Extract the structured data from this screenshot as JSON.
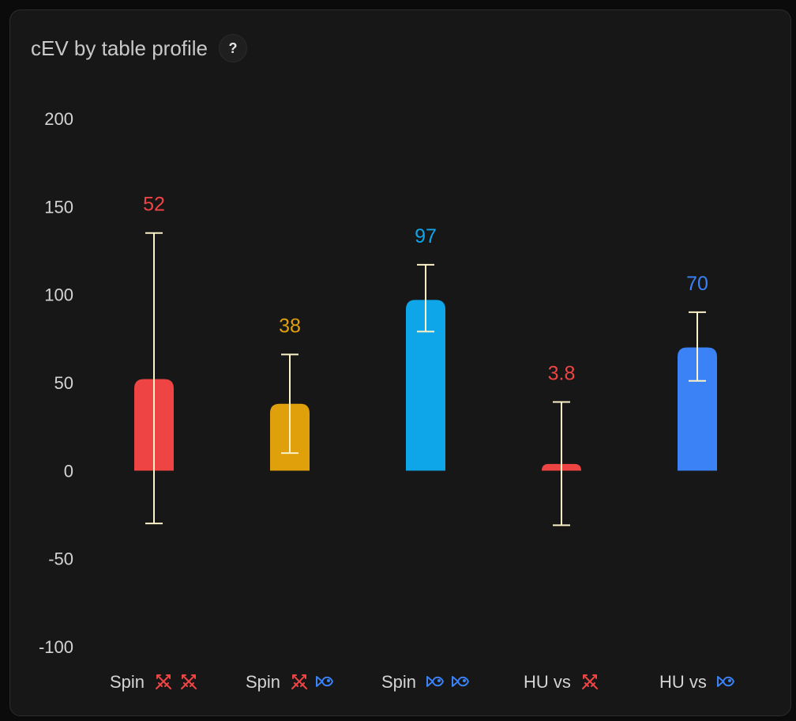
{
  "header": {
    "title": "cEV by table profile",
    "help_label": "?"
  },
  "chart_data": {
    "type": "bar",
    "title": "cEV by table profile",
    "xlabel": "",
    "ylabel": "",
    "ylim": [
      -100,
      200
    ],
    "yticks": [
      200,
      150,
      100,
      50,
      0,
      -50,
      -100
    ],
    "grid": false,
    "bars": [
      {
        "label": "Spin",
        "icons": [
          "swords-icon",
          "swords-icon"
        ],
        "value": 52,
        "value_label": "52",
        "err_low": -30,
        "err_high": 135,
        "color": "#ef4444"
      },
      {
        "label": "Spin",
        "icons": [
          "swords-icon",
          "fish-icon"
        ],
        "value": 38,
        "value_label": "38",
        "err_low": 10,
        "err_high": 66,
        "color": "#e0a00c"
      },
      {
        "label": "Spin",
        "icons": [
          "fish-icon",
          "fish-icon"
        ],
        "value": 97,
        "value_label": "97",
        "err_low": 79,
        "err_high": 117,
        "color": "#0ea5e9"
      },
      {
        "label": "HU vs",
        "icons": [
          "swords-icon"
        ],
        "value": 3.8,
        "value_label": "3.8",
        "err_low": -31,
        "err_high": 39,
        "color": "#ef4444"
      },
      {
        "label": "HU vs",
        "icons": [
          "fish-icon"
        ],
        "value": 70,
        "value_label": "70",
        "err_low": 51,
        "err_high": 90,
        "color": "#3b82f6"
      }
    ],
    "error_bar_color": "#fbf1c7",
    "icon_colors": {
      "swords-icon": "#ef4444",
      "fish-icon": "#3b82f6"
    }
  }
}
